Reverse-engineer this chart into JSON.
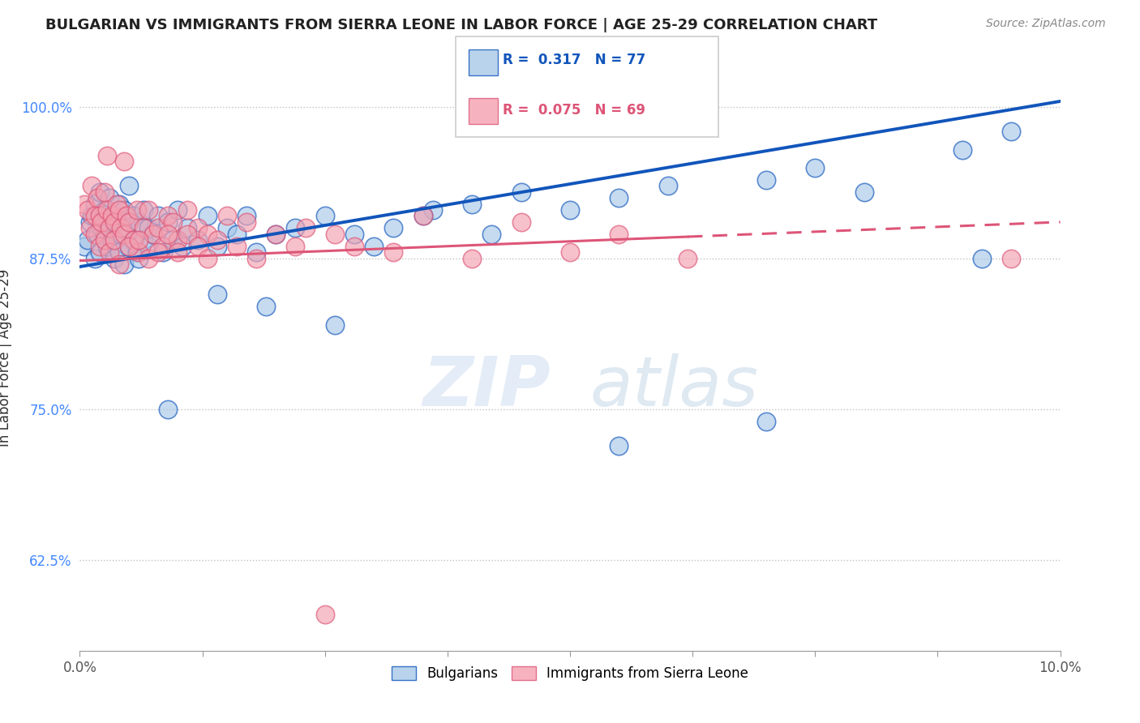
{
  "title": "BULGARIAN VS IMMIGRANTS FROM SIERRA LEONE IN LABOR FORCE | AGE 25-29 CORRELATION CHART",
  "source": "Source: ZipAtlas.com",
  "ylabel": "In Labor Force | Age 25-29",
  "xlim": [
    0.0,
    10.0
  ],
  "ylim": [
    55.0,
    103.5
  ],
  "yticks": [
    62.5,
    75.0,
    87.5,
    100.0
  ],
  "ytick_labels": [
    "62.5%",
    "75.0%",
    "87.5%",
    "100.0%"
  ],
  "xtick_positions": [
    0.0,
    1.25,
    2.5,
    3.75,
    5.0,
    6.25,
    7.5,
    8.75,
    10.0
  ],
  "blue_color": "#A8C8E8",
  "pink_color": "#F4A0B0",
  "blue_line_color": "#1155BB",
  "pink_line_color": "#DD5577",
  "watermark_zip": "ZIP",
  "watermark_atlas": "atlas",
  "legend_labels": [
    "Bulgarians",
    "Immigrants from Sierra Leone"
  ],
  "blue_scatter_x": [
    0.05,
    0.08,
    0.1,
    0.12,
    0.15,
    0.15,
    0.18,
    0.2,
    0.2,
    0.22,
    0.25,
    0.25,
    0.28,
    0.3,
    0.3,
    0.33,
    0.35,
    0.35,
    0.38,
    0.4,
    0.4,
    0.42,
    0.45,
    0.45,
    0.48,
    0.5,
    0.5,
    0.55,
    0.55,
    0.58,
    0.6,
    0.6,
    0.65,
    0.65,
    0.7,
    0.7,
    0.75,
    0.8,
    0.85,
    0.9,
    0.95,
    1.0,
    1.05,
    1.1,
    1.2,
    1.3,
    1.4,
    1.5,
    1.6,
    1.7,
    1.8,
    2.0,
    2.2,
    2.5,
    2.8,
    3.2,
    3.6,
    4.0,
    4.5,
    5.0,
    5.5,
    6.0,
    7.0,
    7.5,
    8.0,
    9.0,
    9.5,
    1.4,
    1.9,
    2.6,
    3.0,
    3.5,
    4.2,
    5.5,
    7.0,
    9.2,
    0.9
  ],
  "blue_scatter_y": [
    88.5,
    89.0,
    90.5,
    91.0,
    92.0,
    87.5,
    89.5,
    88.0,
    93.0,
    90.0,
    89.5,
    91.5,
    88.5,
    90.0,
    92.5,
    89.0,
    91.0,
    87.5,
    90.5,
    88.0,
    92.0,
    89.5,
    91.5,
    87.0,
    90.0,
    88.5,
    93.5,
    89.0,
    91.0,
    88.0,
    90.5,
    87.5,
    89.0,
    91.5,
    88.5,
    90.0,
    89.5,
    91.0,
    88.0,
    90.5,
    89.0,
    91.5,
    88.5,
    90.0,
    89.0,
    91.0,
    88.5,
    90.0,
    89.5,
    91.0,
    88.0,
    89.5,
    90.0,
    91.0,
    89.5,
    90.0,
    91.5,
    92.0,
    93.0,
    91.5,
    92.5,
    93.5,
    94.0,
    95.0,
    93.0,
    96.5,
    98.0,
    84.5,
    83.5,
    82.0,
    88.5,
    91.0,
    89.5,
    72.0,
    74.0,
    87.5,
    75.0
  ],
  "pink_scatter_x": [
    0.05,
    0.08,
    0.1,
    0.12,
    0.15,
    0.15,
    0.18,
    0.2,
    0.2,
    0.22,
    0.25,
    0.25,
    0.28,
    0.3,
    0.3,
    0.33,
    0.35,
    0.35,
    0.38,
    0.4,
    0.42,
    0.45,
    0.48,
    0.5,
    0.55,
    0.58,
    0.6,
    0.65,
    0.7,
    0.75,
    0.8,
    0.85,
    0.9,
    0.95,
    1.0,
    1.1,
    1.2,
    1.3,
    1.5,
    1.7,
    2.0,
    2.3,
    2.8,
    3.5,
    4.5,
    5.5,
    0.4,
    0.5,
    0.6,
    0.7,
    0.8,
    0.9,
    1.0,
    1.1,
    1.2,
    1.3,
    1.4,
    1.6,
    1.8,
    2.2,
    2.6,
    3.2,
    4.0,
    5.0,
    6.2,
    9.5,
    2.5,
    0.28,
    0.45
  ],
  "pink_scatter_y": [
    92.0,
    91.5,
    90.0,
    93.5,
    91.0,
    89.5,
    92.5,
    88.5,
    91.0,
    90.5,
    89.0,
    93.0,
    91.5,
    90.0,
    88.0,
    91.0,
    90.5,
    89.0,
    92.0,
    91.5,
    90.0,
    89.5,
    91.0,
    90.5,
    89.0,
    91.5,
    88.0,
    90.0,
    91.5,
    89.5,
    90.0,
    88.5,
    91.0,
    90.5,
    89.0,
    91.5,
    90.0,
    89.5,
    91.0,
    90.5,
    89.5,
    90.0,
    88.5,
    91.0,
    90.5,
    89.5,
    87.0,
    88.5,
    89.0,
    87.5,
    88.0,
    89.5,
    88.0,
    89.5,
    88.5,
    87.5,
    89.0,
    88.5,
    87.5,
    88.5,
    89.5,
    88.0,
    87.5,
    88.0,
    87.5,
    87.5,
    58.0,
    96.0,
    95.5
  ],
  "blue_line_x0": 0.0,
  "blue_line_y0": 86.8,
  "blue_line_x1": 10.0,
  "blue_line_y1": 100.5,
  "pink_line_x0": 0.0,
  "pink_line_y0": 87.3,
  "pink_line_x1": 10.0,
  "pink_line_y1": 90.5,
  "pink_solid_end": 6.2
}
